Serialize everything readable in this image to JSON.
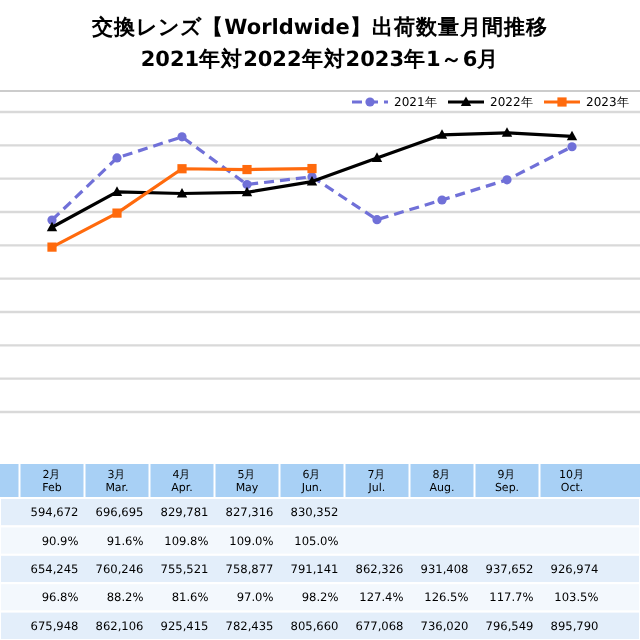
{
  "chart_data": {
    "type": "line",
    "title": "交換レンズ【Worldwide】出荷数量月間推移",
    "subtitle": "2021年対2022年対2023年1～6月",
    "categories": [
      "2月\nFeb",
      "3月\nMar.",
      "4月\nApr.",
      "5月\nMay",
      "6月\nJun.",
      "7月\nJul.",
      "8月\nAug.",
      "9月\nSep.",
      "10月\nOct."
    ],
    "series": [
      {
        "name": "2021年",
        "color": "#7070d8",
        "marker": "circle",
        "line_style": "dashed",
        "values": [
          675948,
          862106,
          925415,
          782435,
          805660,
          677068,
          736020,
          796549,
          895790
        ],
        "value_labels": [
          "675,948",
          "862,106",
          "925,415",
          "782,435",
          "805,660",
          "677,068",
          "736,020",
          "796,549",
          "895,790"
        ]
      },
      {
        "name": "2022年",
        "color": "#000000",
        "marker": "triangle",
        "line_style": "solid",
        "values": [
          654245,
          760246,
          755521,
          758877,
          791141,
          862326,
          931408,
          937652,
          926974
        ],
        "value_labels": [
          "654,245",
          "760,246",
          "755,521",
          "758,877",
          "791,141",
          "862,326",
          "931,408",
          "937,652",
          "926,974"
        ]
      },
      {
        "name": "2023年",
        "color": "#ff6a0d",
        "marker": "square",
        "line_style": "solid",
        "values": [
          594672,
          696695,
          829781,
          827316,
          830352,
          null,
          null,
          null,
          null
        ],
        "value_labels": [
          "594,672",
          "696,695",
          "829,781",
          "827,316",
          "830,352",
          null,
          null,
          null,
          null
        ]
      }
    ],
    "ylim": [
      100000,
      1000000
    ],
    "yticks": [
      {
        "value": 100000,
        "label": null
      },
      {
        "value": 200000,
        "label": null
      },
      {
        "value": 300000,
        "label": null
      },
      {
        "value": 400000,
        "label": null
      },
      {
        "value": 500000,
        "label": null
      },
      {
        "value": 600000,
        "label": null
      },
      {
        "value": 700000,
        "label": null
      },
      {
        "value": 800000,
        "label": null
      },
      {
        "value": 900000,
        "label": null
      },
      {
        "value": 1000000,
        "label": null
      }
    ],
    "grid": "y",
    "legend": "top right",
    "tick_labels": "x",
    "annotations": [
      "90.9%",
      "91.6%",
      "109.8%",
      "109.0%",
      "105.0%",
      "96.8%",
      "88.2%",
      "81.6%",
      "97.0%",
      "98.2%",
      "127.4%",
      "126.5%",
      "117.7%",
      "103.5%"
    ]
  }
}
